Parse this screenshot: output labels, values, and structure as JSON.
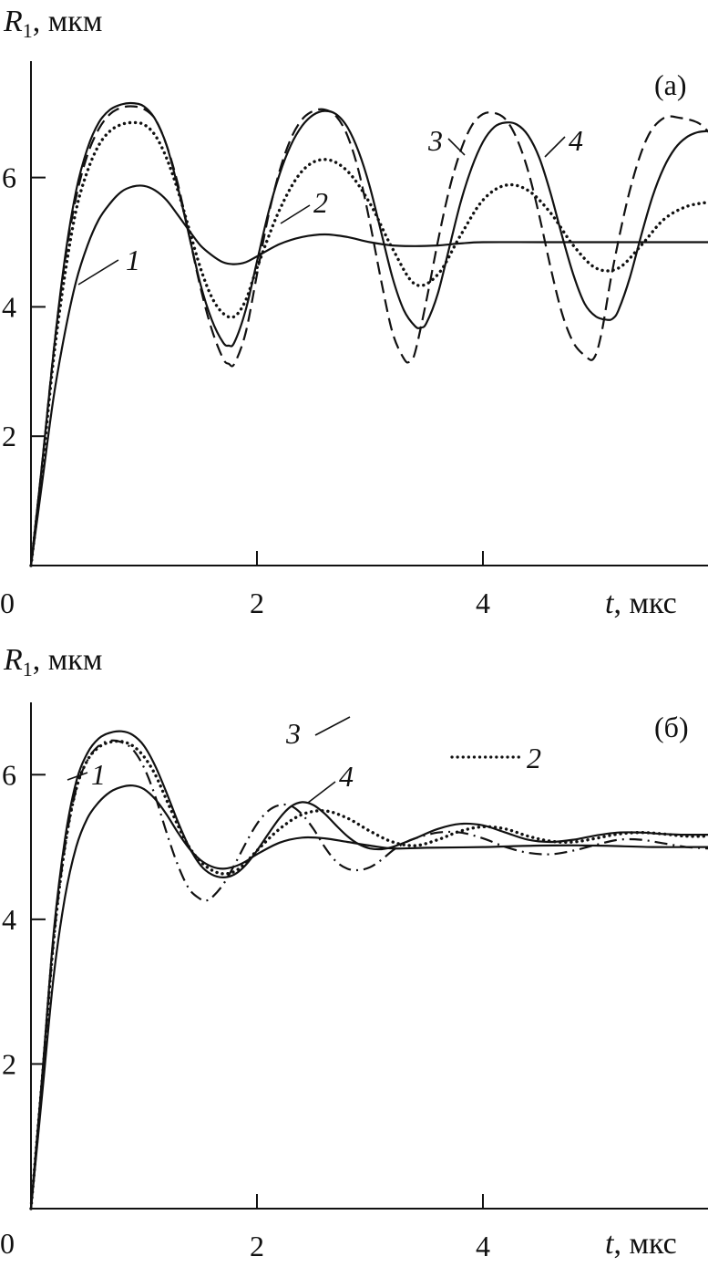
{
  "chart_data": [
    {
      "type": "line",
      "panel_label": "(а)",
      "ylabel_var": "R",
      "ylabel_sub": "1",
      "ylabel_unit": ", мкм",
      "xlabel_var": "t",
      "xlabel_unit": ", мкс",
      "xlim": [
        0,
        6
      ],
      "ylim": [
        0,
        7.8
      ],
      "origin_label": "0",
      "xticks": [
        2,
        4
      ],
      "xtick_labels": [
        "2",
        "4"
      ],
      "yticks": [
        2,
        4,
        6
      ],
      "ytick_labels": [
        "2",
        "4",
        "6"
      ],
      "grid": false,
      "series": [
        {
          "name": "1",
          "line_style": "solid",
          "x": [
            0,
            0.1,
            0.2,
            0.3,
            0.4,
            0.5,
            0.6,
            0.7,
            0.8,
            0.9,
            1.0,
            1.1,
            1.2,
            1.3,
            1.4,
            1.5,
            1.6,
            1.7,
            1.8,
            1.9,
            2.0,
            2.2,
            2.4,
            2.6,
            2.8,
            3.0,
            3.2,
            3.4,
            3.6,
            3.8,
            4.0,
            4.5,
            5.0,
            5.5,
            6.0
          ],
          "y": [
            0,
            1.3,
            2.6,
            3.6,
            4.4,
            4.95,
            5.35,
            5.6,
            5.78,
            5.86,
            5.87,
            5.8,
            5.65,
            5.42,
            5.18,
            4.95,
            4.8,
            4.69,
            4.66,
            4.69,
            4.78,
            4.97,
            5.08,
            5.12,
            5.08,
            5.0,
            4.95,
            4.94,
            4.95,
            4.98,
            5.0,
            5.0,
            5.0,
            5.0,
            5.0
          ]
        },
        {
          "name": "2",
          "line_style": "dotted",
          "x": [
            0,
            0.1,
            0.2,
            0.3,
            0.4,
            0.5,
            0.6,
            0.7,
            0.8,
            0.9,
            1.0,
            1.1,
            1.2,
            1.3,
            1.4,
            1.5,
            1.6,
            1.7,
            1.8,
            1.9,
            2.0,
            2.2,
            2.4,
            2.6,
            2.8,
            3.0,
            3.2,
            3.4,
            3.6,
            3.8,
            4.0,
            4.2,
            4.4,
            4.6,
            4.8,
            5.0,
            5.2,
            5.4,
            5.6,
            5.8,
            6.0
          ],
          "y": [
            0,
            1.5,
            3.2,
            4.5,
            5.5,
            6.1,
            6.5,
            6.72,
            6.82,
            6.85,
            6.82,
            6.65,
            6.3,
            5.8,
            5.2,
            4.6,
            4.15,
            3.9,
            3.85,
            4.1,
            4.6,
            5.5,
            6.1,
            6.28,
            6.1,
            5.6,
            4.9,
            4.35,
            4.5,
            5.1,
            5.65,
            5.88,
            5.8,
            5.45,
            4.95,
            4.6,
            4.6,
            4.95,
            5.35,
            5.55,
            5.62
          ]
        },
        {
          "name": "3",
          "line_style": "dashed",
          "x": [
            0,
            0.1,
            0.2,
            0.3,
            0.4,
            0.5,
            0.6,
            0.7,
            0.8,
            0.9,
            1.0,
            1.1,
            1.2,
            1.3,
            1.4,
            1.5,
            1.6,
            1.7,
            1.75,
            1.8,
            1.9,
            2.0,
            2.1,
            2.2,
            2.3,
            2.4,
            2.5,
            2.6,
            2.7,
            2.8,
            2.9,
            3.0,
            3.1,
            3.2,
            3.3,
            3.35,
            3.4,
            3.5,
            3.6,
            3.7,
            3.8,
            3.9,
            4.0,
            4.1,
            4.2,
            4.3,
            4.4,
            4.5,
            4.6,
            4.7,
            4.8,
            4.9,
            4.98,
            5.05,
            5.15,
            5.3,
            5.45,
            5.6,
            5.75,
            5.9,
            6.0
          ],
          "y": [
            0,
            1.6,
            3.3,
            4.7,
            5.7,
            6.35,
            6.75,
            6.98,
            7.08,
            7.1,
            7.06,
            6.9,
            6.5,
            5.9,
            5.1,
            4.3,
            3.65,
            3.2,
            3.12,
            3.12,
            3.6,
            4.5,
            5.4,
            6.1,
            6.6,
            6.9,
            7.03,
            7.05,
            6.95,
            6.65,
            6.1,
            5.3,
            4.4,
            3.6,
            3.2,
            3.15,
            3.3,
            4.1,
            5.0,
            5.8,
            6.4,
            6.8,
            6.98,
            7.0,
            6.9,
            6.6,
            6.1,
            5.4,
            4.6,
            3.9,
            3.45,
            3.25,
            3.2,
            3.6,
            4.6,
            5.8,
            6.6,
            6.92,
            6.92,
            6.85,
            6.7
          ]
        },
        {
          "name": "4",
          "line_style": "solid",
          "x": [
            0,
            0.1,
            0.2,
            0.3,
            0.4,
            0.5,
            0.6,
            0.7,
            0.8,
            0.9,
            1.0,
            1.1,
            1.2,
            1.3,
            1.4,
            1.5,
            1.6,
            1.7,
            1.75,
            1.8,
            1.9,
            2.0,
            2.1,
            2.2,
            2.3,
            2.4,
            2.5,
            2.6,
            2.7,
            2.8,
            2.9,
            3.0,
            3.1,
            3.2,
            3.3,
            3.4,
            3.45,
            3.5,
            3.6,
            3.7,
            3.8,
            3.9,
            4.0,
            4.1,
            4.2,
            4.3,
            4.4,
            4.5,
            4.6,
            4.7,
            4.8,
            4.9,
            5.0,
            5.1,
            5.15,
            5.2,
            5.3,
            5.4,
            5.5,
            5.6,
            5.7,
            5.8,
            5.9,
            6.0
          ],
          "y": [
            0,
            1.6,
            3.3,
            4.75,
            5.8,
            6.45,
            6.85,
            7.05,
            7.13,
            7.15,
            7.1,
            6.9,
            6.5,
            5.85,
            5.1,
            4.35,
            3.8,
            3.45,
            3.4,
            3.45,
            3.95,
            4.7,
            5.45,
            6.05,
            6.5,
            6.8,
            6.97,
            7.03,
            6.98,
            6.78,
            6.4,
            5.85,
            5.15,
            4.45,
            3.95,
            3.7,
            3.68,
            3.75,
            4.2,
            4.9,
            5.6,
            6.15,
            6.55,
            6.78,
            6.85,
            6.82,
            6.65,
            6.3,
            5.75,
            5.1,
            4.5,
            4.05,
            3.85,
            3.8,
            3.82,
            3.95,
            4.45,
            5.1,
            5.7,
            6.15,
            6.45,
            6.62,
            6.7,
            6.72
          ]
        }
      ]
    },
    {
      "type": "line",
      "panel_label": "(б)",
      "ylabel_var": "R",
      "ylabel_sub": "1",
      "ylabel_unit": ", мкм",
      "xlabel_var": "t",
      "xlabel_unit": ", мкс",
      "xlim": [
        0,
        6
      ],
      "ylim": [
        0,
        7.0
      ],
      "origin_label": "0",
      "xticks": [
        2,
        4
      ],
      "xtick_labels": [
        "2",
        "4"
      ],
      "yticks": [
        2,
        4,
        6
      ],
      "ytick_labels": [
        "2",
        "4",
        "6"
      ],
      "grid": false,
      "series": [
        {
          "name": "1",
          "line_style": "solid",
          "x": [
            0,
            0.1,
            0.2,
            0.3,
            0.4,
            0.5,
            0.6,
            0.7,
            0.8,
            0.9,
            1.0,
            1.1,
            1.2,
            1.3,
            1.4,
            1.5,
            1.6,
            1.7,
            1.8,
            1.9,
            2.0,
            2.2,
            2.4,
            2.6,
            2.8,
            3.0,
            3.2,
            3.5,
            4.0,
            4.5,
            5.0,
            5.5,
            6.0
          ],
          "y": [
            0,
            1.6,
            3.2,
            4.3,
            5.0,
            5.4,
            5.62,
            5.76,
            5.83,
            5.85,
            5.8,
            5.66,
            5.45,
            5.2,
            4.98,
            4.82,
            4.73,
            4.7,
            4.73,
            4.8,
            4.9,
            5.06,
            5.13,
            5.12,
            5.07,
            5.02,
            4.98,
            4.99,
            5.0,
            5.02,
            5.02,
            5.0,
            5.0
          ]
        },
        {
          "name": "2",
          "line_style": "dotted",
          "x": [
            0,
            0.1,
            0.2,
            0.3,
            0.4,
            0.5,
            0.6,
            0.7,
            0.8,
            0.9,
            1.0,
            1.1,
            1.2,
            1.3,
            1.4,
            1.5,
            1.6,
            1.7,
            1.8,
            1.9,
            2.0,
            2.2,
            2.4,
            2.6,
            2.8,
            3.0,
            3.2,
            3.4,
            3.6,
            3.8,
            4.0,
            4.2,
            4.4,
            4.6,
            4.8,
            5.0,
            5.2,
            5.4,
            5.6,
            5.8,
            6.0
          ],
          "y": [
            0,
            1.8,
            3.7,
            5.0,
            5.8,
            6.2,
            6.38,
            6.45,
            6.46,
            6.4,
            6.25,
            6.0,
            5.65,
            5.3,
            5.0,
            4.8,
            4.68,
            4.63,
            4.66,
            4.78,
            4.95,
            5.25,
            5.45,
            5.5,
            5.4,
            5.22,
            5.07,
            5.02,
            5.1,
            5.22,
            5.28,
            5.25,
            5.15,
            5.08,
            5.07,
            5.12,
            5.18,
            5.2,
            5.18,
            5.15,
            5.15
          ]
        },
        {
          "name": "3",
          "line_style": "dashdot",
          "x": [
            0,
            0.1,
            0.2,
            0.3,
            0.4,
            0.5,
            0.6,
            0.7,
            0.8,
            0.9,
            1.0,
            1.1,
            1.2,
            1.3,
            1.4,
            1.5,
            1.55,
            1.6,
            1.7,
            1.8,
            1.9,
            2.0,
            2.1,
            2.2,
            2.3,
            2.4,
            2.5,
            2.6,
            2.7,
            2.8,
            2.9,
            3.0,
            3.1,
            3.2,
            3.3,
            3.4,
            3.6,
            3.8,
            4.0,
            4.2,
            4.4,
            4.6,
            4.8,
            5.0,
            5.2,
            5.4,
            5.6,
            5.8,
            6.0
          ],
          "y": [
            0,
            1.8,
            3.7,
            5.0,
            5.8,
            6.2,
            6.4,
            6.47,
            6.45,
            6.35,
            6.1,
            5.7,
            5.2,
            4.75,
            4.42,
            4.28,
            4.26,
            4.3,
            4.48,
            4.75,
            5.05,
            5.32,
            5.5,
            5.58,
            5.57,
            5.45,
            5.25,
            5.0,
            4.8,
            4.7,
            4.68,
            4.72,
            4.82,
            4.95,
            5.05,
            5.12,
            5.2,
            5.2,
            5.12,
            5.0,
            4.92,
            4.9,
            4.95,
            5.03,
            5.1,
            5.1,
            5.05,
            5.0,
            4.98
          ]
        },
        {
          "name": "4",
          "line_style": "solid",
          "x": [
            0,
            0.1,
            0.2,
            0.3,
            0.4,
            0.5,
            0.6,
            0.7,
            0.8,
            0.9,
            1.0,
            1.1,
            1.2,
            1.3,
            1.4,
            1.5,
            1.6,
            1.7,
            1.8,
            1.9,
            2.0,
            2.1,
            2.2,
            2.3,
            2.4,
            2.5,
            2.6,
            2.7,
            2.8,
            2.9,
            3.0,
            3.1,
            3.2,
            3.4,
            3.6,
            3.8,
            4.0,
            4.2,
            4.4,
            4.6,
            4.8,
            5.0,
            5.2,
            5.4,
            5.6,
            5.8,
            6.0
          ],
          "y": [
            0,
            1.85,
            3.8,
            5.1,
            5.9,
            6.3,
            6.5,
            6.58,
            6.6,
            6.55,
            6.4,
            6.12,
            5.75,
            5.35,
            5.0,
            4.75,
            4.62,
            4.58,
            4.62,
            4.75,
            4.95,
            5.18,
            5.4,
            5.56,
            5.62,
            5.58,
            5.46,
            5.3,
            5.15,
            5.04,
            4.98,
            4.97,
            5.0,
            5.12,
            5.25,
            5.32,
            5.3,
            5.2,
            5.1,
            5.07,
            5.1,
            5.16,
            5.2,
            5.2,
            5.18,
            5.17,
            5.17
          ]
        }
      ]
    }
  ]
}
